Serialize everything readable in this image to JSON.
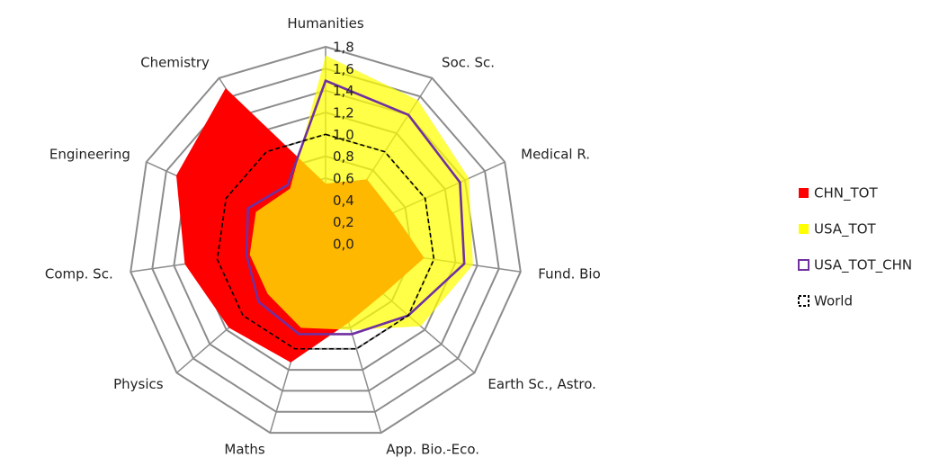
{
  "chart_data": {
    "type": "radar",
    "categories": [
      "Humanities",
      "Soc. Sc.",
      "Medical R.",
      "Fund. Bio",
      "Earth Sc., Astro.",
      "App. Bio.-Eco.",
      "Maths",
      "Physics",
      "Comp. Sc.",
      "Engineering",
      "Chemistry"
    ],
    "ylim": [
      0,
      1.8
    ],
    "yticks": [
      {
        "value": 0,
        "label": "0,0"
      },
      {
        "value": 0.2,
        "label": "0,2"
      },
      {
        "value": 0.4,
        "label": "0,4"
      },
      {
        "value": 0.6,
        "label": "0,6"
      },
      {
        "value": 0.8,
        "label": "0,8"
      },
      {
        "value": 1.0,
        "label": "1,0"
      },
      {
        "value": 1.2,
        "label": "1,2"
      },
      {
        "value": 1.4,
        "label": "1,4"
      },
      {
        "value": 1.6,
        "label": "1,6"
      },
      {
        "value": 1.8,
        "label": "1,8"
      }
    ],
    "grid": true,
    "legend": "right",
    "series": [
      {
        "name": "CHN_TOT",
        "color": "#ff0000",
        "style": "filled",
        "values": [
          0.55,
          0.7,
          0.68,
          0.91,
          0.7,
          0.75,
          1.13,
          1.17,
          1.3,
          1.5,
          1.69
        ]
      },
      {
        "name": "USA_TOT",
        "color": "#ffff00",
        "style": "filled",
        "values": [
          1.72,
          1.56,
          1.44,
          1.36,
          1.15,
          0.82,
          0.8,
          0.7,
          0.7,
          0.7,
          0.6
        ]
      },
      {
        "name": "USA_TOT_CHN",
        "color": "#7030a0",
        "style": "line",
        "values": [
          1.49,
          1.4,
          1.35,
          1.28,
          1.0,
          0.86,
          0.86,
          0.81,
          0.73,
          0.78,
          0.64
        ]
      },
      {
        "name": "World",
        "color": "#000000",
        "style": "dashed",
        "values": [
          1,
          1,
          1,
          1,
          1,
          1,
          1,
          1,
          1,
          1,
          1
        ]
      }
    ]
  }
}
